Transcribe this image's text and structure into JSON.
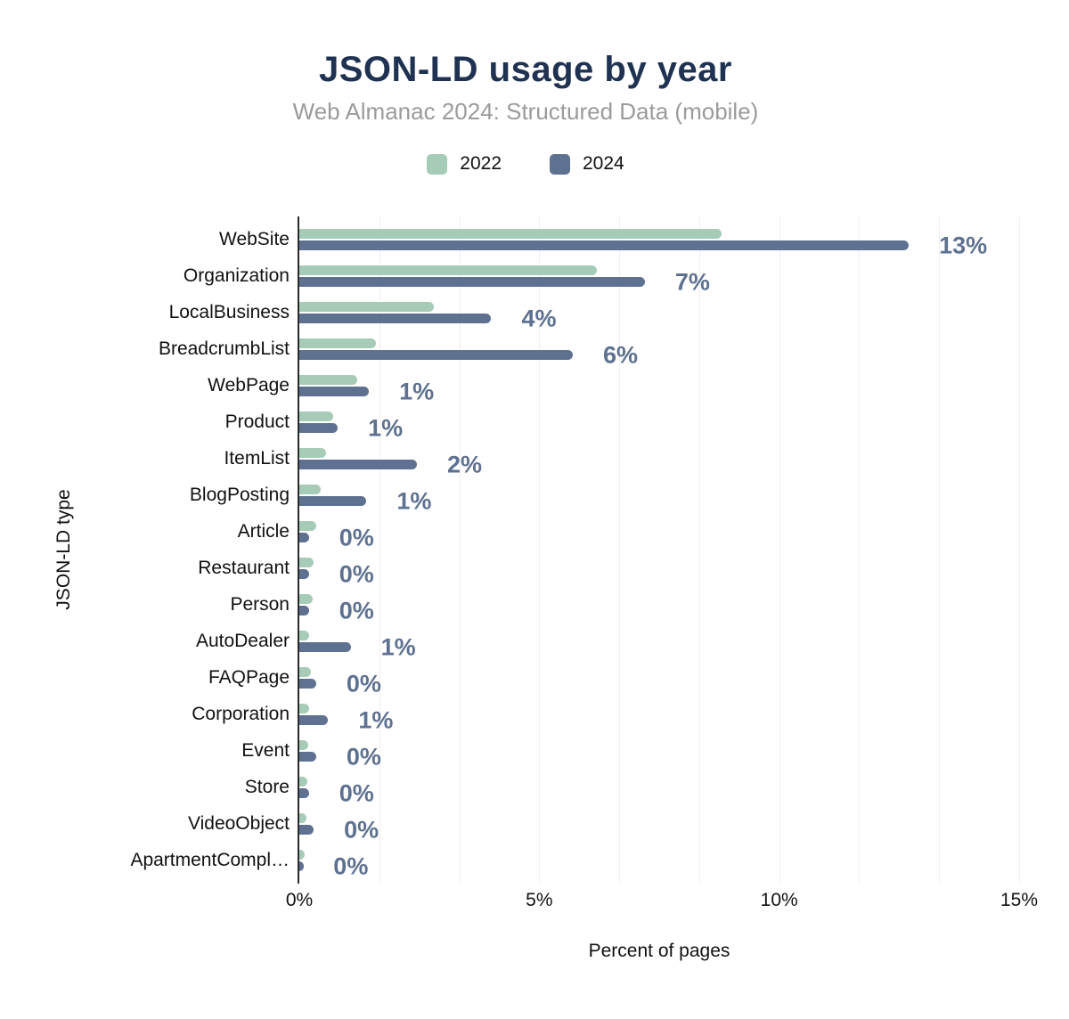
{
  "colors": {
    "title": "#1f3251",
    "subtitle": "#9b9b9b",
    "series_2022": "#a6cbb7",
    "series_2024": "#5e7190",
    "value_label": "#5e7190",
    "axis_line": "#2b2b2b",
    "gridline": "#f0f0f0",
    "background": "#ffffff"
  },
  "chart_data": {
    "type": "bar",
    "orientation": "horizontal",
    "title": "JSON-LD usage by year",
    "subtitle": "Web Almanac 2024: Structured Data (mobile)",
    "xlabel": "Percent of pages",
    "ylabel": "JSON-LD type",
    "xlim": [
      0,
      15
    ],
    "x_ticks": [
      "0%",
      "5%",
      "10%",
      "15%"
    ],
    "x_tick_values": [
      0,
      5,
      10,
      15
    ],
    "grid": "faint vertical gridlines every 1.667%",
    "legend_position": "top-center",
    "categories": [
      "WebSite",
      "Organization",
      "LocalBusiness",
      "BreadcrumbList",
      "WebPage",
      "Product",
      "ItemList",
      "BlogPosting",
      "Article",
      "Restaurant",
      "Person",
      "AutoDealer",
      "FAQPage",
      "Corporation",
      "Event",
      "Store",
      "VideoObject",
      "ApartmentCompl…"
    ],
    "series": [
      {
        "name": "2022",
        "color": "#a6cbb7",
        "values": [
          8.8,
          6.2,
          2.8,
          1.6,
          1.2,
          0.7,
          0.55,
          0.45,
          0.35,
          0.3,
          0.27,
          0.2,
          0.24,
          0.2,
          0.18,
          0.16,
          0.14,
          0.12
        ]
      },
      {
        "name": "2024",
        "color": "#5e7190",
        "values": [
          12.7,
          7.2,
          4.0,
          5.7,
          1.45,
          0.8,
          2.45,
          1.4,
          0.2,
          0.2,
          0.2,
          1.07,
          0.35,
          0.6,
          0.35,
          0.2,
          0.3,
          0.08
        ]
      }
    ],
    "value_labels": {
      "for_series": "2024",
      "labels": [
        "13%",
        "7%",
        "4%",
        "6%",
        "1%",
        "1%",
        "2%",
        "1%",
        "0%",
        "0%",
        "0%",
        "1%",
        "0%",
        "1%",
        "0%",
        "0%",
        "0%",
        "0%"
      ]
    }
  }
}
